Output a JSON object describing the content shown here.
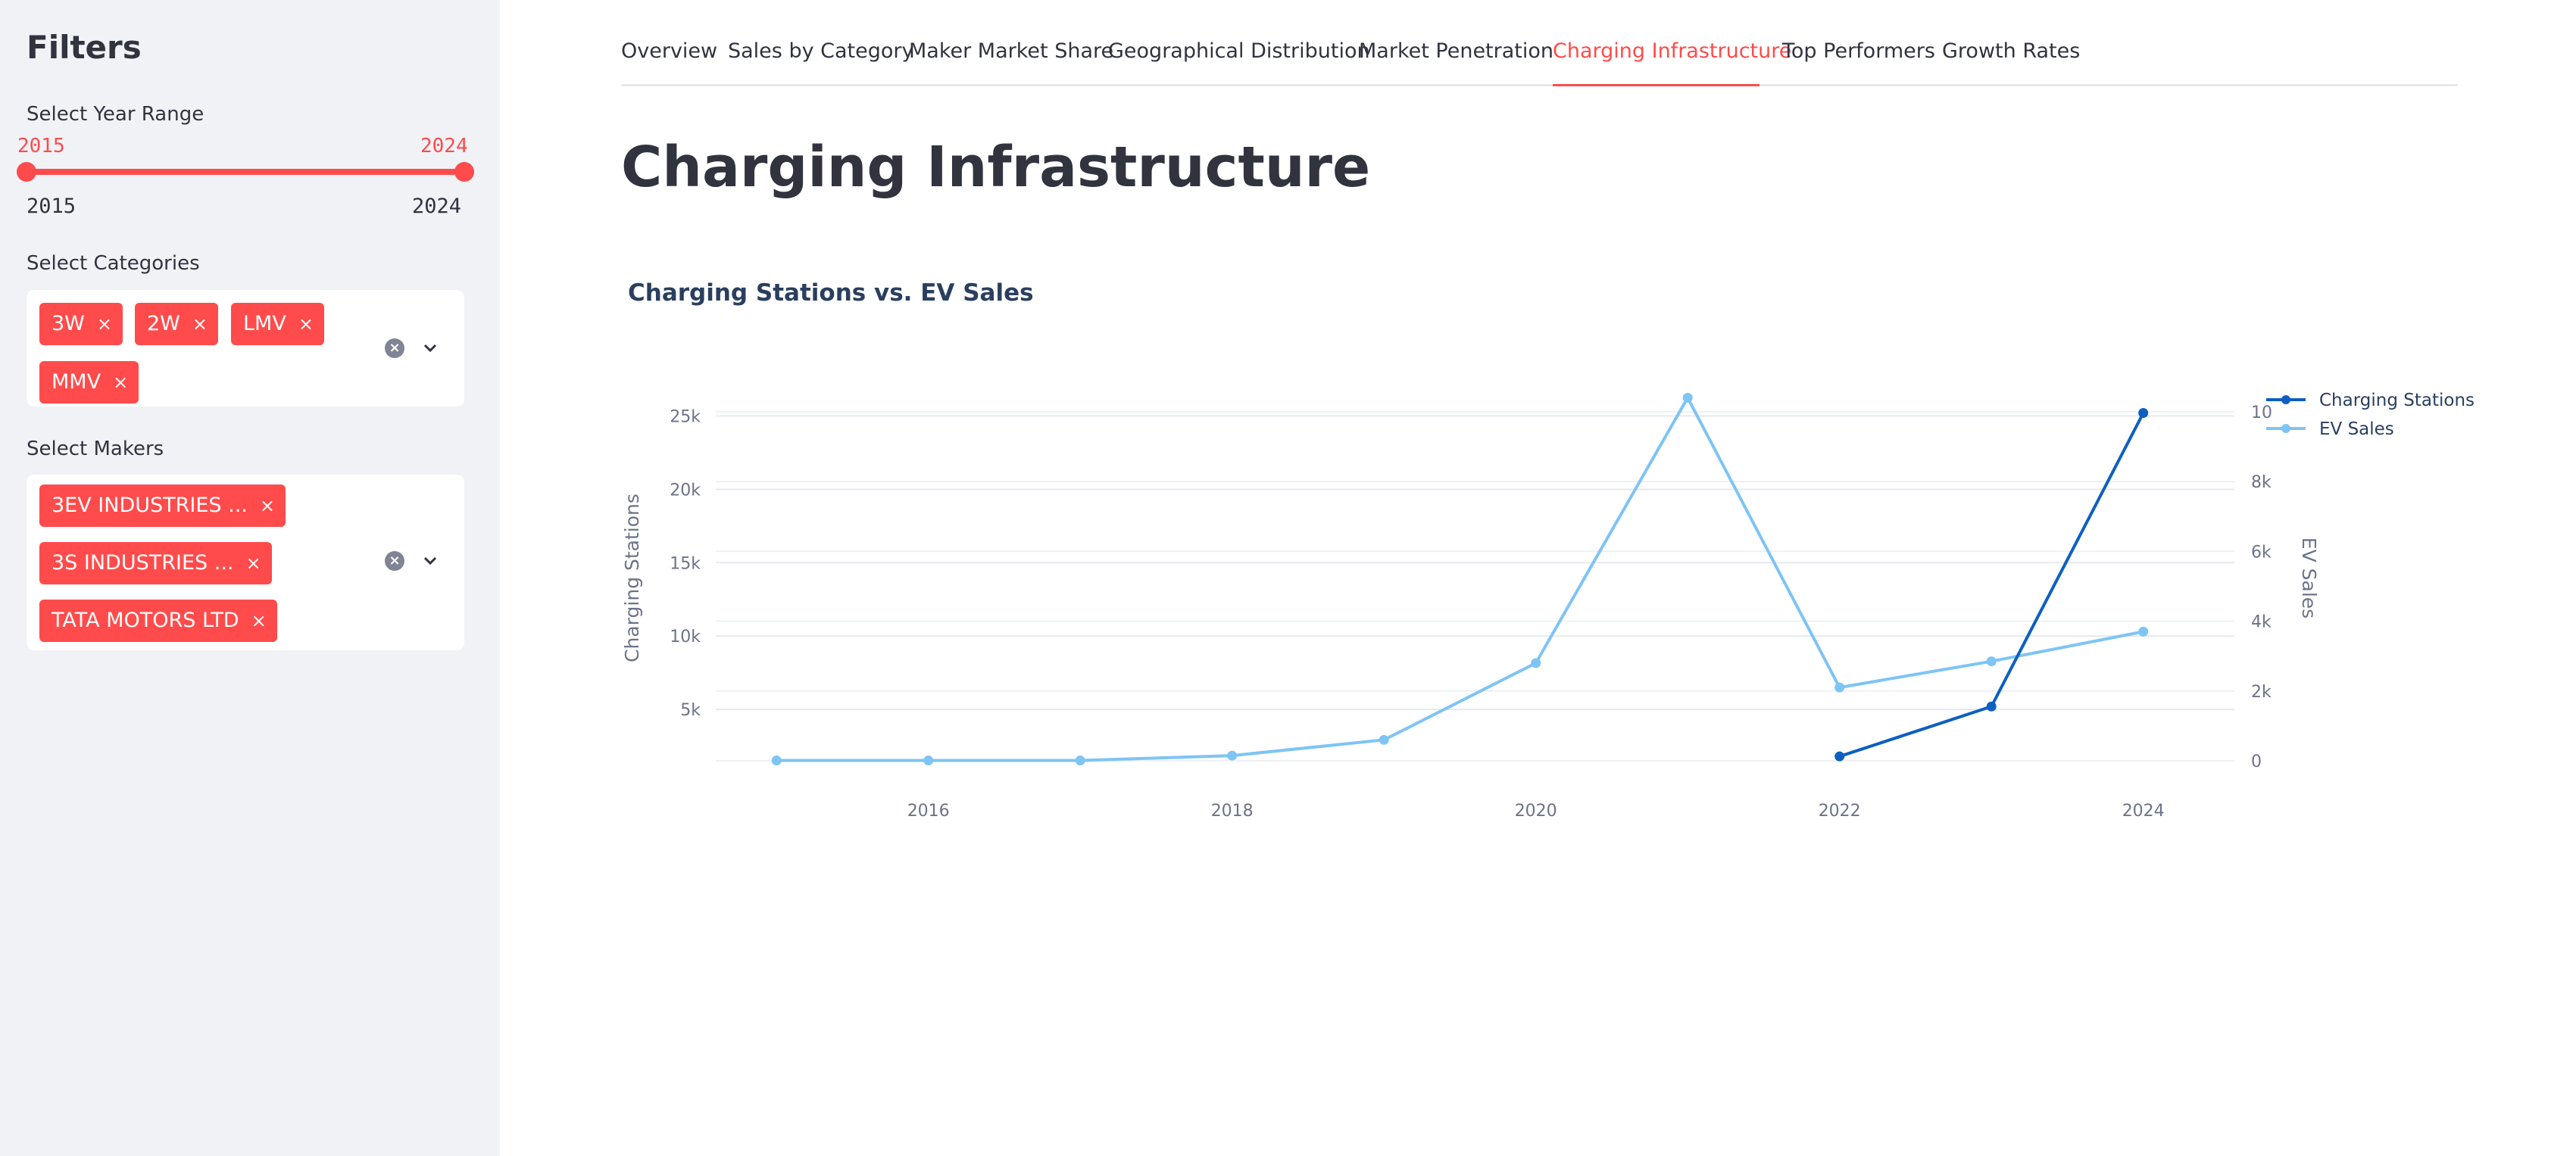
{
  "sidebar": {
    "title": "Filters",
    "year_range": {
      "label": "Select Year Range",
      "min_value": "2015",
      "max_value": "2024",
      "min_bound": "2015",
      "max_bound": "2024"
    },
    "categories": {
      "label": "Select Categories",
      "tags": [
        "3W",
        "2W",
        "LMV",
        "MMV"
      ]
    },
    "makers": {
      "label": "Select Makers",
      "tags": [
        "3EV INDUSTRIES ...",
        "3S INDUSTRIES ...",
        "TATA MOTORS LTD"
      ]
    },
    "remove_glyph": "×",
    "clear_glyph": "×"
  },
  "tabs": [
    "Overview",
    "Sales by Category",
    "Maker Market Share",
    "Geographical Distribution",
    "Market Penetration",
    "Charging Infrastructure",
    "Top Performers",
    "Growth Rates"
  ],
  "active_tab": "Charging Infrastructure",
  "page_title": "Charging Infrastructure",
  "colors": {
    "accent": "#ff4b4b",
    "sidebar_bg": "#f0f2f6",
    "series_charging": "#0d5fc2",
    "series_ev": "#7ec4f5"
  },
  "chart_data": {
    "type": "line",
    "title": "Charging Stations vs. EV Sales",
    "xlabel": "",
    "ylabel": "Charging Stations",
    "y2label": "EV Sales",
    "x_ticks": [
      "2016",
      "2018",
      "2020",
      "2022",
      "2024"
    ],
    "y_ticks": [
      "5k",
      "10k",
      "15k",
      "20k",
      "25k"
    ],
    "y2_ticks": [
      "0",
      "2k",
      "4k",
      "6k",
      "8k",
      "10"
    ],
    "xlim": [
      2014.6,
      2024.6
    ],
    "ylim": [
      1500,
      26000
    ],
    "y2lim": [
      0,
      10300
    ],
    "grid": true,
    "legend_position": "top-right",
    "series": [
      {
        "name": "Charging Stations",
        "axis": "y",
        "color": "#0d5fc2",
        "x": [
          2022,
          2023,
          2024
        ],
        "values": [
          1800,
          5200,
          25200
        ]
      },
      {
        "name": "EV Sales",
        "axis": "y2",
        "color": "#7ec4f5",
        "x": [
          2015,
          2016,
          2017,
          2018,
          2019,
          2020,
          2021,
          2022,
          2023,
          2024
        ],
        "values": [
          10,
          10,
          10,
          150,
          600,
          2800,
          10400,
          2100,
          2850,
          3700
        ]
      }
    ]
  }
}
